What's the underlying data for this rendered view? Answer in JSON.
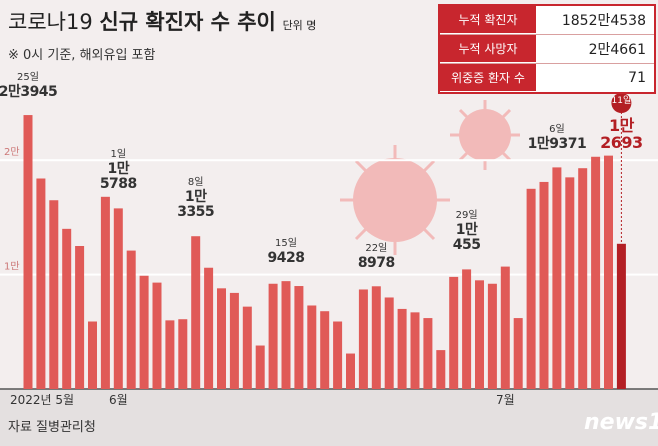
{
  "title_light": "코로나19",
  "title_bold": "신규 확진자 수 추이",
  "unit": "단위 명",
  "note": "※ 0시 기준, 해외유입 포함",
  "source": "자료 질병관리청",
  "logo": "news1",
  "info_table": {
    "rows": [
      [
        "누적 확진자",
        "1852만4538"
      ],
      [
        "누적 사망자",
        "2만4661"
      ],
      [
        "위중증 환자 수",
        "71"
      ]
    ]
  },
  "chart_data": {
    "type": "bar",
    "categories": [
      "2022년 5월",
      null,
      null,
      null,
      null,
      null,
      null,
      "6월",
      null,
      null,
      null,
      null,
      null,
      null,
      null,
      null,
      null,
      null,
      null,
      null,
      null,
      null,
      null,
      null,
      null,
      null,
      null,
      null,
      null,
      null,
      null,
      null,
      null,
      null,
      null,
      null,
      null,
      "7월",
      null,
      null,
      null,
      null,
      null,
      null,
      null,
      null,
      null,
      null
    ],
    "values": [
      23945,
      18400,
      16500,
      14000,
      12500,
      5900,
      16800,
      15788,
      12100,
      9900,
      9300,
      6000,
      6100,
      13355,
      10600,
      8800,
      8400,
      7200,
      3800,
      9200,
      9428,
      9000,
      7300,
      6800,
      5900,
      3100,
      8700,
      8978,
      8000,
      7000,
      6700,
      6200,
      3400,
      9800,
      10455,
      9500,
      9200,
      10700,
      6200,
      17500,
      18100,
      19371,
      18500,
      19300,
      20300,
      20400,
      12693,
      null
    ],
    "date_labels": [
      "25일",
      null,
      null,
      null,
      null,
      null,
      null,
      "1일",
      null,
      null,
      null,
      null,
      null,
      "8일",
      null,
      null,
      null,
      null,
      null,
      null,
      "15일",
      null,
      null,
      null,
      null,
      null,
      null,
      "22일",
      null,
      null,
      null,
      null,
      null,
      null,
      "29일",
      null,
      null,
      null,
      null,
      null,
      null,
      "6일",
      null,
      null,
      null,
      null,
      "11일",
      null
    ],
    "value_labels": [
      "2만3945",
      null,
      null,
      null,
      null,
      null,
      null,
      "1만\n5788",
      null,
      null,
      null,
      null,
      null,
      "1만\n3355",
      null,
      null,
      null,
      null,
      null,
      null,
      "9428",
      null,
      null,
      null,
      null,
      null,
      null,
      "8978",
      null,
      null,
      null,
      null,
      null,
      null,
      "1만\n455",
      null,
      null,
      null,
      null,
      null,
      null,
      "1만9371",
      null,
      null,
      null,
      null,
      "1만\n2693",
      null
    ],
    "color": "#e05a57",
    "highlight_color": "#b31f24",
    "ylim": [
      0,
      25000
    ],
    "yticks": [
      {
        "value": 10000,
        "label": "1만"
      },
      {
        "value": 20000,
        "label": "2만"
      }
    ],
    "grid": true
  }
}
